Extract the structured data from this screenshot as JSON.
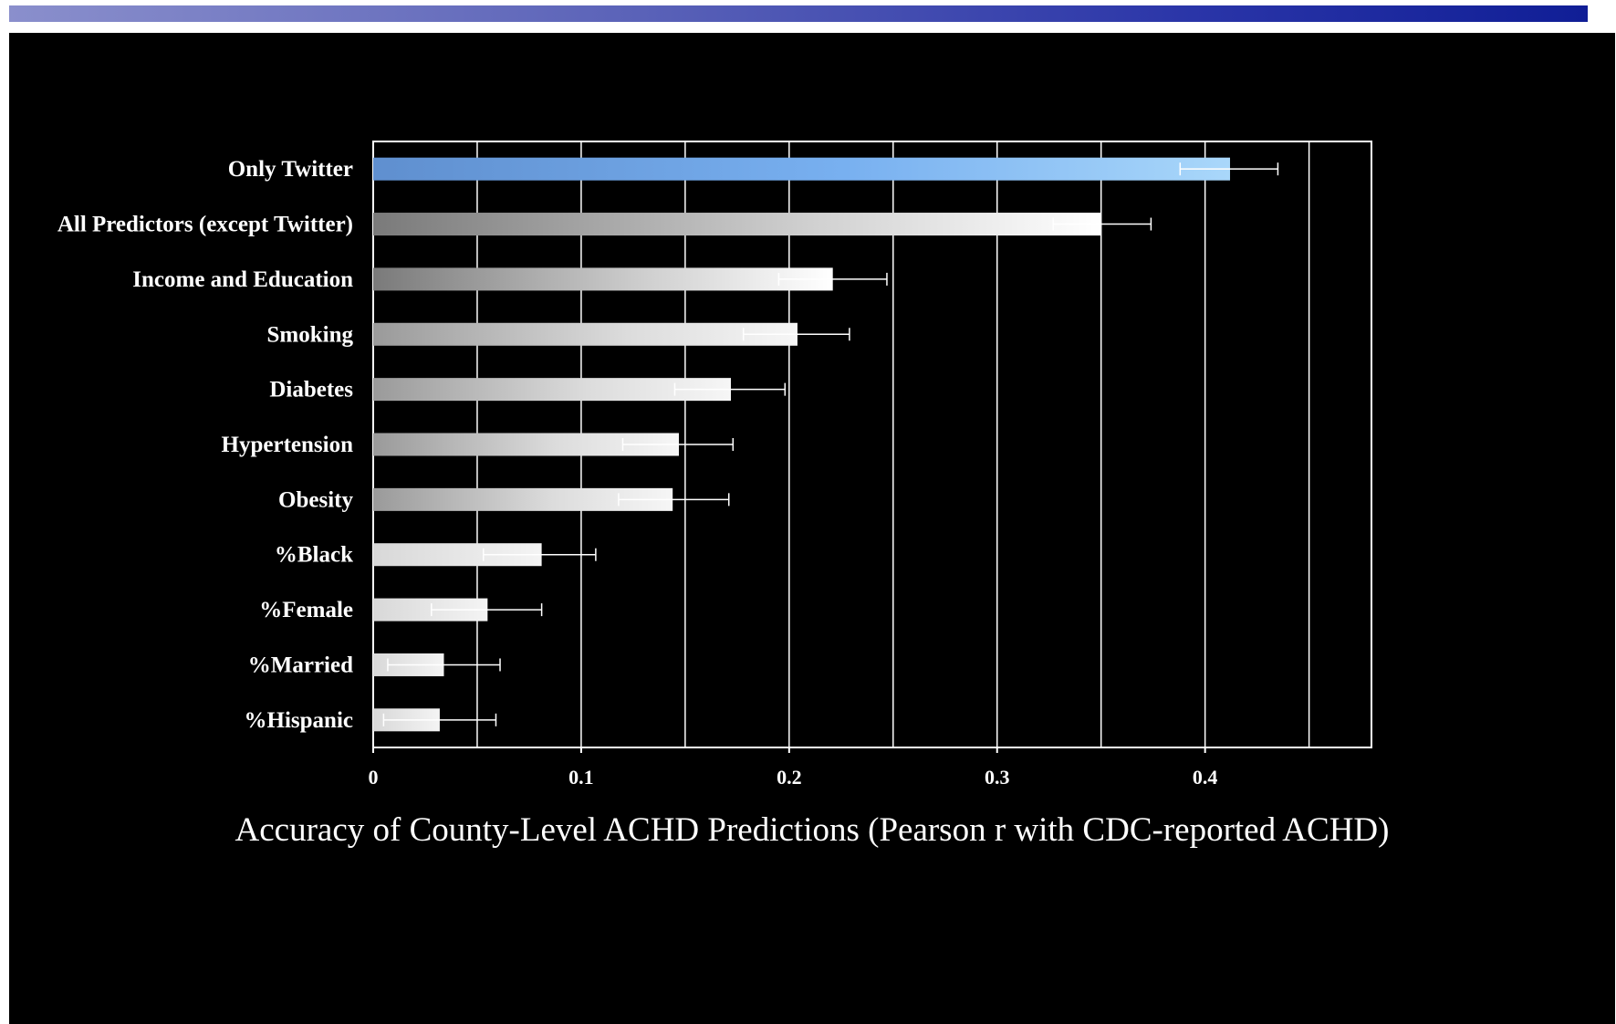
{
  "chart_data": {
    "type": "bar",
    "orientation": "horizontal",
    "title": "",
    "xlabel": "Accuracy  of County-Level  ACHD  Predictions (Pearson r with CDC-reported  ACHD)",
    "ylabel": "",
    "xlim": [
      0,
      0.48
    ],
    "xticks": [
      0,
      0.1,
      0.2,
      0.3,
      0.4
    ],
    "xtick_labels": [
      "0",
      "0.1",
      "0.2",
      "0.3",
      "0.4"
    ],
    "grid": "vertical lines every 0.05",
    "legend": "none",
    "categories": [
      "Only Twitter",
      "All Predictors (except Twitter)",
      "Income and Education",
      "Smoking",
      "Diabetes",
      "Hypertension",
      "Obesity",
      "%Black",
      "%Female",
      "%Married",
      "%Hispanic"
    ],
    "values": [
      0.412,
      0.35,
      0.221,
      0.204,
      0.172,
      0.147,
      0.144,
      0.081,
      0.055,
      0.034,
      0.032
    ],
    "error_low": [
      0.388,
      0.327,
      0.195,
      0.178,
      0.145,
      0.12,
      0.118,
      0.053,
      0.028,
      0.007,
      0.005
    ],
    "error_high": [
      0.435,
      0.374,
      0.247,
      0.229,
      0.198,
      0.173,
      0.171,
      0.107,
      0.081,
      0.061,
      0.059
    ],
    "colors": {
      "highlight_bar": "#7ab4f0",
      "bar": "#e8e8e8",
      "background": "#000000",
      "grid": "#ffffff"
    }
  },
  "header_band_color": "#2a35a8"
}
